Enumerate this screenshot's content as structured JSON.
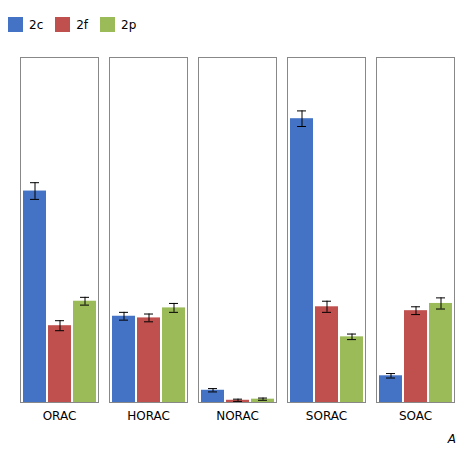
{
  "chart_data": {
    "type": "bar",
    "categories": [
      "ORAC",
      "HORAC",
      "NORAC",
      "SORAC",
      "SOAC"
    ],
    "series": [
      {
        "name": "2c",
        "color": "#4472C4",
        "values": [
          3.8,
          1.55,
          0.22,
          5.1,
          0.48
        ],
        "errors": [
          0.15,
          0.07,
          0.03,
          0.14,
          0.04
        ]
      },
      {
        "name": "2f",
        "color": "#C0504D",
        "values": [
          1.38,
          1.52,
          0.04,
          1.72,
          1.65
        ],
        "errors": [
          0.09,
          0.07,
          0.02,
          0.1,
          0.07
        ]
      },
      {
        "name": "2p",
        "color": "#9BBB59",
        "values": [
          1.82,
          1.7,
          0.06,
          1.18,
          1.78
        ],
        "errors": [
          0.07,
          0.08,
          0.02,
          0.05,
          0.1
        ]
      }
    ],
    "ylim": [
      0,
      6.2
    ],
    "tick_labels": "x",
    "grid": false,
    "legend": "upper left",
    "annotations": [
      "A"
    ]
  }
}
